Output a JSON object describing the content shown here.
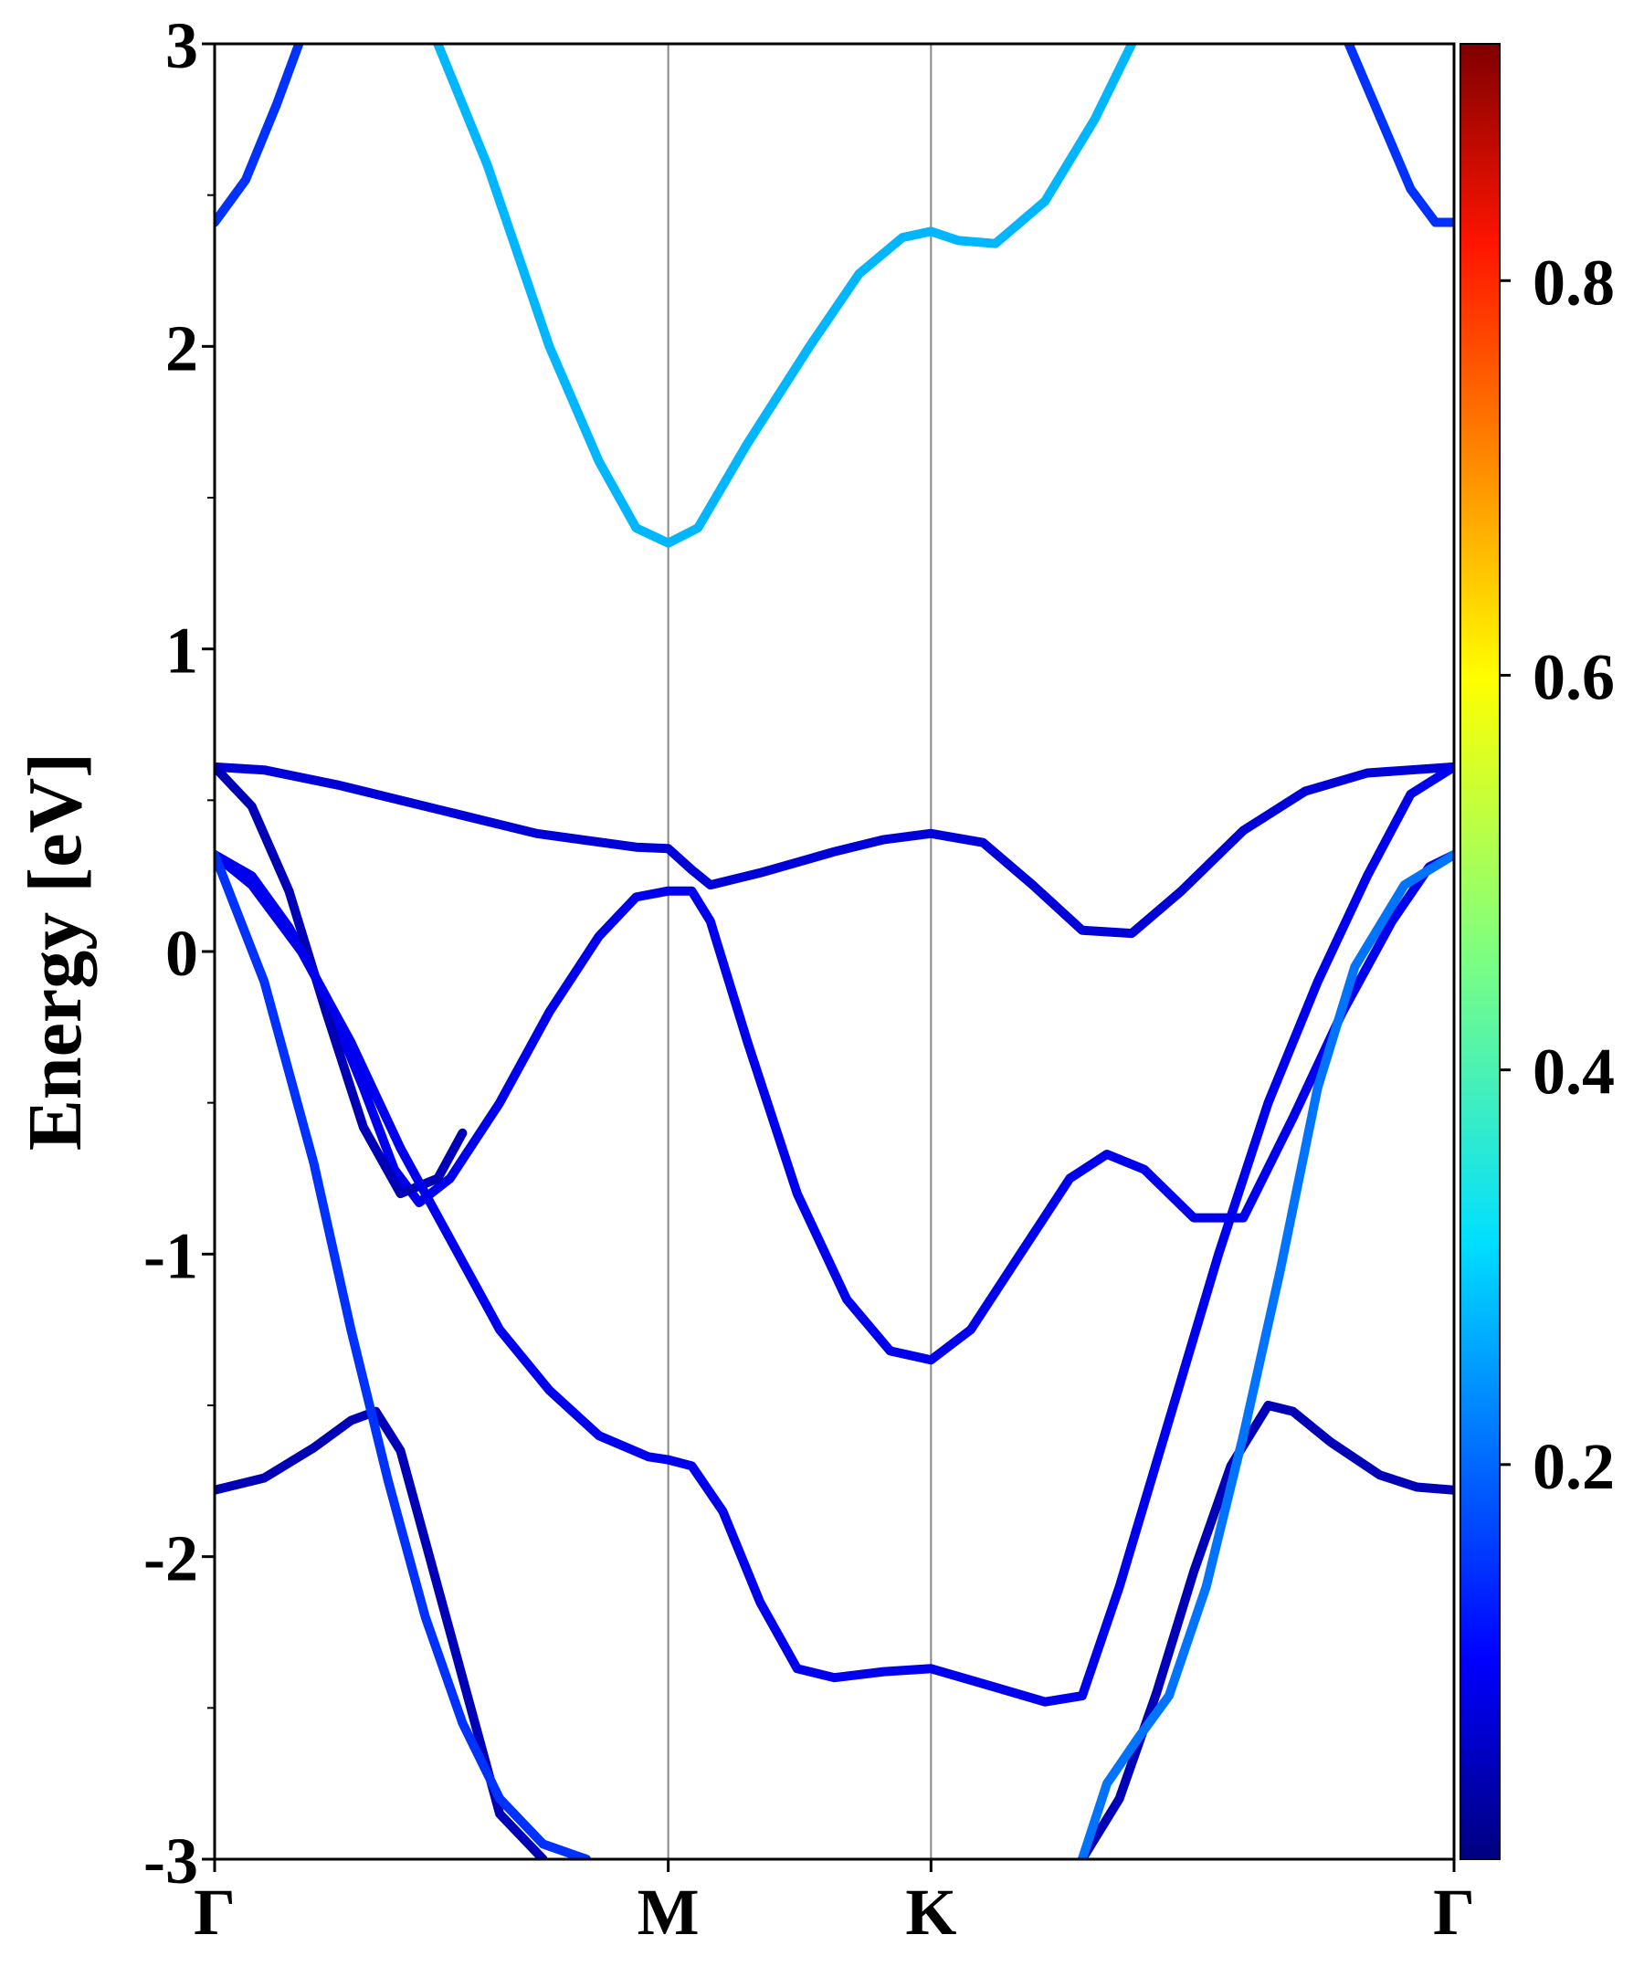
{
  "chart_data": {
    "type": "line",
    "title": "",
    "ylabel": "Energy [eV]",
    "xlabel": "",
    "ylim": [
      -3,
      3
    ],
    "xlim": [
      0,
      1
    ],
    "yticks": [
      -3,
      -2,
      -1,
      0,
      1,
      2,
      3
    ],
    "yminor_ticks": [
      -2.5,
      -1.5,
      -0.5,
      0.5,
      1.5,
      2.5
    ],
    "ytick_labels": [
      "-3",
      "-2",
      "-1",
      "0",
      "1",
      "2",
      "3"
    ],
    "kpoints": [
      {
        "label": "Γ",
        "x": 0.0
      },
      {
        "label": "M",
        "x": 0.366
      },
      {
        "label": "K",
        "x": 0.578
      },
      {
        "label": "Γ",
        "x": 1.0
      }
    ],
    "colorbar": {
      "colormap": "jet",
      "min": 0.0,
      "max": 0.92,
      "ticks": [
        0.2,
        0.4,
        0.6,
        0.8
      ],
      "tick_labels": [
        "0.2",
        "0.4",
        "0.6",
        "0.8"
      ]
    },
    "series": [
      {
        "weight": 0.16,
        "points": [
          [
            0.0,
            2.41
          ],
          [
            0.025,
            2.55
          ],
          [
            0.05,
            2.8
          ],
          [
            0.068,
            3.0
          ]
        ]
      },
      {
        "weight": 0.16,
        "points": [
          [
            0.915,
            3.0
          ],
          [
            0.94,
            2.76
          ],
          [
            0.965,
            2.52
          ],
          [
            0.985,
            2.41
          ],
          [
            1.0,
            2.41
          ]
        ]
      },
      {
        "weight": 0.28,
        "points": [
          [
            0.18,
            3.0
          ],
          [
            0.22,
            2.6
          ],
          [
            0.27,
            2.0
          ],
          [
            0.31,
            1.62
          ],
          [
            0.34,
            1.4
          ],
          [
            0.366,
            1.35
          ],
          [
            0.39,
            1.4
          ],
          [
            0.43,
            1.68
          ],
          [
            0.48,
            2.0
          ],
          [
            0.52,
            2.24
          ],
          [
            0.555,
            2.36
          ],
          [
            0.578,
            2.38
          ],
          [
            0.6,
            2.35
          ],
          [
            0.63,
            2.34
          ],
          [
            0.67,
            2.48
          ],
          [
            0.71,
            2.75
          ],
          [
            0.74,
            3.0
          ]
        ]
      },
      {
        "weight": 0.08,
        "points": [
          [
            0.0,
            0.61
          ],
          [
            0.04,
            0.6
          ],
          [
            0.1,
            0.55
          ],
          [
            0.18,
            0.47
          ],
          [
            0.26,
            0.39
          ],
          [
            0.34,
            0.345
          ],
          [
            0.366,
            0.34
          ],
          [
            0.385,
            0.27
          ],
          [
            0.4,
            0.22
          ],
          [
            0.44,
            0.26
          ],
          [
            0.5,
            0.33
          ],
          [
            0.54,
            0.37
          ],
          [
            0.578,
            0.39
          ],
          [
            0.62,
            0.36
          ],
          [
            0.66,
            0.22
          ],
          [
            0.7,
            0.07
          ],
          [
            0.74,
            0.06
          ],
          [
            0.78,
            0.2
          ],
          [
            0.83,
            0.4
          ],
          [
            0.88,
            0.53
          ],
          [
            0.93,
            0.59
          ],
          [
            1.0,
            0.61
          ]
        ]
      },
      {
        "weight": 0.1,
        "points": [
          [
            0.0,
            0.32
          ],
          [
            0.03,
            0.25
          ],
          [
            0.06,
            0.08
          ],
          [
            0.09,
            -0.15
          ],
          [
            0.12,
            -0.45
          ],
          [
            0.145,
            -0.72
          ],
          [
            0.165,
            -0.83
          ],
          [
            0.19,
            -0.75
          ],
          [
            0.23,
            -0.5
          ],
          [
            0.27,
            -0.2
          ],
          [
            0.31,
            0.05
          ],
          [
            0.34,
            0.18
          ],
          [
            0.366,
            0.2
          ],
          [
            0.385,
            0.2
          ],
          [
            0.4,
            0.1
          ],
          [
            0.43,
            -0.3
          ],
          [
            0.47,
            -0.8
          ],
          [
            0.51,
            -1.15
          ],
          [
            0.545,
            -1.32
          ],
          [
            0.578,
            -1.35
          ],
          [
            0.61,
            -1.25
          ],
          [
            0.65,
            -1.0
          ],
          [
            0.69,
            -0.75
          ],
          [
            0.72,
            -0.67
          ],
          [
            0.75,
            -0.72
          ],
          [
            0.79,
            -0.88
          ],
          [
            0.83,
            -0.88
          ],
          [
            0.87,
            -0.55
          ],
          [
            0.91,
            -0.2
          ],
          [
            0.95,
            0.1
          ],
          [
            0.98,
            0.28
          ],
          [
            1.0,
            0.32
          ]
        ]
      },
      {
        "weight": 0.05,
        "points": [
          [
            0.0,
            0.61
          ],
          [
            0.03,
            0.48
          ],
          [
            0.06,
            0.2
          ],
          [
            0.09,
            -0.2
          ],
          [
            0.12,
            -0.58
          ],
          [
            0.15,
            -0.8
          ],
          [
            0.18,
            -0.75
          ],
          [
            0.2,
            -0.6
          ]
        ]
      },
      {
        "weight": 0.1,
        "points": [
          [
            0.0,
            0.32
          ],
          [
            0.03,
            0.22
          ],
          [
            0.07,
            0.0
          ],
          [
            0.11,
            -0.3
          ],
          [
            0.15,
            -0.65
          ],
          [
            0.19,
            -0.95
          ],
          [
            0.23,
            -1.25
          ],
          [
            0.27,
            -1.45
          ],
          [
            0.31,
            -1.6
          ],
          [
            0.35,
            -1.67
          ],
          [
            0.366,
            -1.68
          ],
          [
            0.385,
            -1.7
          ],
          [
            0.41,
            -1.85
          ],
          [
            0.44,
            -2.15
          ],
          [
            0.47,
            -2.37
          ],
          [
            0.5,
            -2.4
          ],
          [
            0.54,
            -2.38
          ],
          [
            0.578,
            -2.37
          ],
          [
            0.62,
            -2.42
          ],
          [
            0.67,
            -2.48
          ],
          [
            0.7,
            -2.46
          ],
          [
            0.73,
            -2.1
          ],
          [
            0.77,
            -1.55
          ],
          [
            0.81,
            -1.0
          ],
          [
            0.85,
            -0.5
          ],
          [
            0.89,
            -0.1
          ],
          [
            0.93,
            0.25
          ],
          [
            0.965,
            0.52
          ],
          [
            1.0,
            0.61
          ]
        ]
      },
      {
        "weight": 0.05,
        "points": [
          [
            0.0,
            -1.78
          ],
          [
            0.04,
            -1.74
          ],
          [
            0.08,
            -1.64
          ],
          [
            0.11,
            -1.55
          ],
          [
            0.13,
            -1.52
          ],
          [
            0.15,
            -1.65
          ],
          [
            0.17,
            -1.95
          ],
          [
            0.2,
            -2.4
          ],
          [
            0.23,
            -2.85
          ],
          [
            0.265,
            -3.0
          ]
        ]
      },
      {
        "weight": 0.05,
        "points": [
          [
            0.7,
            -3.0
          ],
          [
            0.73,
            -2.8
          ],
          [
            0.76,
            -2.45
          ],
          [
            0.79,
            -2.05
          ],
          [
            0.82,
            -1.7
          ],
          [
            0.85,
            -1.5
          ],
          [
            0.87,
            -1.52
          ],
          [
            0.9,
            -1.62
          ],
          [
            0.94,
            -1.73
          ],
          [
            0.97,
            -1.77
          ],
          [
            1.0,
            -1.78
          ]
        ]
      },
      {
        "weight": 0.16,
        "points": [
          [
            0.0,
            0.32
          ],
          [
            0.04,
            -0.1
          ],
          [
            0.08,
            -0.7
          ],
          [
            0.11,
            -1.25
          ],
          [
            0.14,
            -1.75
          ],
          [
            0.17,
            -2.2
          ],
          [
            0.2,
            -2.55
          ],
          [
            0.23,
            -2.8
          ],
          [
            0.265,
            -2.95
          ],
          [
            0.3,
            -3.0
          ]
        ]
      },
      {
        "weight": 0.22,
        "points": [
          [
            0.7,
            -3.0
          ],
          [
            0.72,
            -2.75
          ],
          [
            0.745,
            -2.6
          ],
          [
            0.77,
            -2.46
          ],
          [
            0.8,
            -2.1
          ],
          [
            0.83,
            -1.6
          ],
          [
            0.86,
            -1.05
          ],
          [
            0.89,
            -0.45
          ],
          [
            0.92,
            -0.05
          ],
          [
            0.96,
            0.22
          ],
          [
            1.0,
            0.32
          ]
        ]
      }
    ]
  }
}
